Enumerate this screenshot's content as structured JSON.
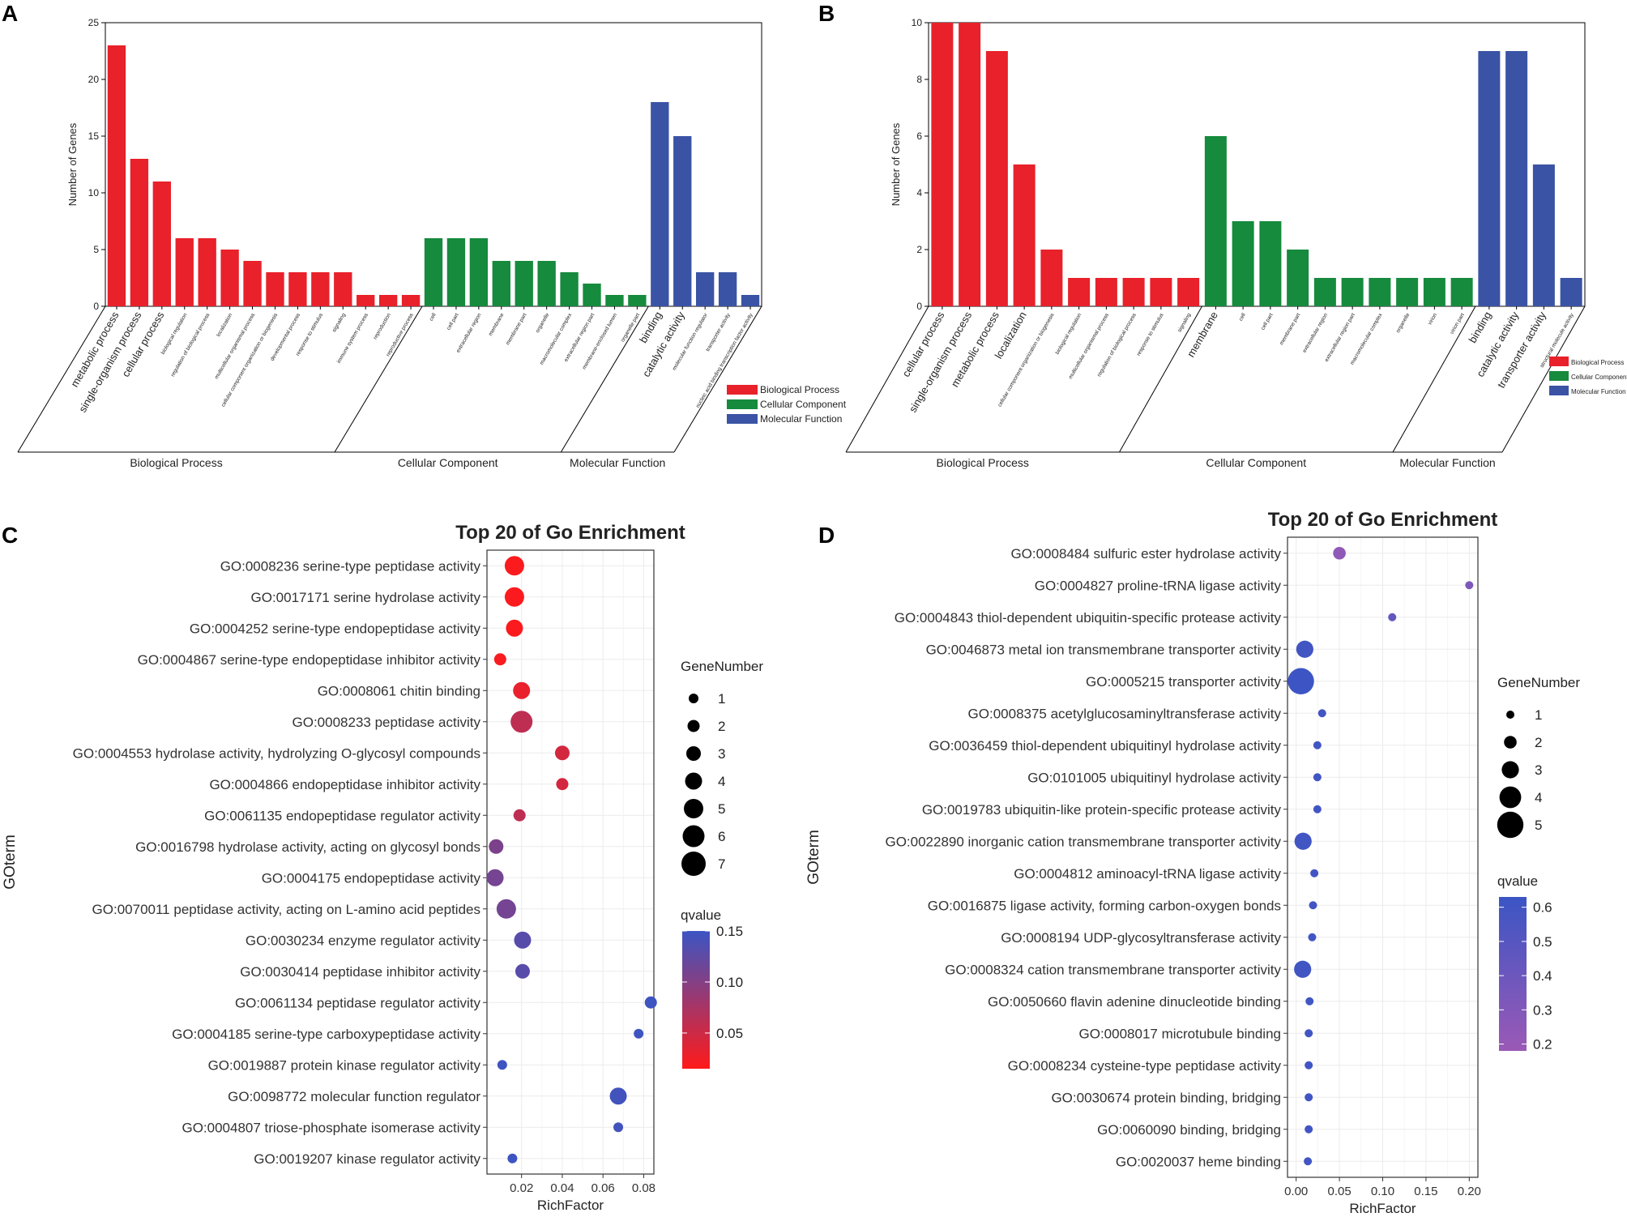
{
  "panels": {
    "A": "A",
    "B": "B",
    "C": "C",
    "D": "D"
  },
  "legend_colors": {
    "Biological Process": "#e8212a",
    "Cellular Component": "#168a3d",
    "Molecular Function": "#3a53a4"
  },
  "chart_data": [
    {
      "type": "bar",
      "panel": "A",
      "ylabel": "Number of Genes",
      "ylim": [
        0,
        25
      ],
      "yticks": [
        0,
        5,
        10,
        15,
        20,
        25
      ],
      "legend": [
        "Biological Process",
        "Cellular Component",
        "Molecular Function"
      ],
      "groups": [
        {
          "name": "Biological Process",
          "categories": [
            "metabolic process",
            "single-organism process",
            "cellular process",
            "biological regulation",
            "regulation of biological process",
            "localization",
            "multicellular organismal process",
            "cellular component organization or biogenesis",
            "developmental process",
            "response to stimulus",
            "signaling",
            "immune system process",
            "reproduction",
            "reproductive process"
          ],
          "values": [
            23,
            13,
            11,
            6,
            6,
            5,
            4,
            3,
            3,
            3,
            3,
            1,
            1,
            1
          ]
        },
        {
          "name": "Cellular Component",
          "categories": [
            "cell",
            "cell part",
            "extracellular region",
            "membrane",
            "membrane part",
            "organelle",
            "macromolecular complex",
            "extracellular region part",
            "membrane-enclosed lumen",
            "organelle part"
          ],
          "values": [
            6,
            6,
            6,
            4,
            4,
            4,
            3,
            2,
            1,
            1
          ]
        },
        {
          "name": "Molecular Function",
          "categories": [
            "binding",
            "catalytic activity",
            "molecular function regulator",
            "transporter activity",
            "nucleic acid binding transcription factor activity"
          ],
          "values": [
            18,
            15,
            3,
            3,
            1
          ]
        }
      ]
    },
    {
      "type": "bar",
      "panel": "B",
      "ylabel": "Number of Genes",
      "ylim": [
        0,
        10
      ],
      "yticks": [
        0,
        2,
        4,
        6,
        8,
        10
      ],
      "legend": [
        "Biological Process",
        "Cellular Component",
        "Molecular Function"
      ],
      "groups": [
        {
          "name": "Biological Process",
          "categories": [
            "cellular process",
            "single-organism process",
            "metabolic process",
            "localization",
            "cellular component organization or biogenesis",
            "biological regulation",
            "multicellular organismal process",
            "regulation of biological process",
            "response to stimulus",
            "signaling"
          ],
          "values": [
            10,
            10,
            9,
            5,
            2,
            1,
            1,
            1,
            1,
            1
          ]
        },
        {
          "name": "Cellular Component",
          "categories": [
            "membrane",
            "cell",
            "cell part",
            "membrane part",
            "extracellular region",
            "extracellular region part",
            "macromolecular complex",
            "organelle",
            "virion",
            "virion part"
          ],
          "values": [
            6,
            3,
            3,
            2,
            1,
            1,
            1,
            1,
            1,
            1
          ]
        },
        {
          "name": "Molecular Function",
          "categories": [
            "binding",
            "catalytic activity",
            "transporter activity",
            "structural molecule activity"
          ],
          "values": [
            9,
            9,
            5,
            1
          ]
        }
      ]
    },
    {
      "type": "scatter",
      "panel": "C",
      "title": "Top 20 of Go Enrichment",
      "xlabel": "RichFactor",
      "ylabel": "GOterm",
      "xlim": [
        0.003,
        0.085
      ],
      "xticks": [
        0.02,
        0.04,
        0.06,
        0.08
      ],
      "xtick_labels": [
        "0.02",
        "0.04",
        "0.06",
        "0.08"
      ],
      "size_legend": {
        "title": "GeneNumber",
        "values": [
          1,
          2,
          3,
          4,
          5,
          6,
          7
        ]
      },
      "color_legend": {
        "title": "qvalue",
        "min": 0.015,
        "max": 0.15,
        "ticks": [
          0.05,
          0.1,
          0.15
        ],
        "tick_labels": [
          "0.05",
          "0.10",
          "0.15"
        ],
        "low_color": "#ff1a1a",
        "high_color": "#3b55c4"
      },
      "terms": [
        "GO:0008236 serine-type peptidase activity",
        "GO:0017171 serine hydrolase activity",
        "GO:0004252 serine-type endopeptidase activity",
        "GO:0004867 serine-type endopeptidase inhibitor activity",
        "GO:0008061 chitin binding",
        "GO:0008233 peptidase activity",
        "GO:0004553 hydrolase activity, hydrolyzing O-glycosyl compounds",
        "GO:0004866 endopeptidase inhibitor activity",
        "GO:0061135 endopeptidase regulator activity",
        "GO:0016798 hydrolase activity, acting on glycosyl bonds",
        "GO:0004175 endopeptidase activity",
        "GO:0070011 peptidase activity, acting on L-amino acid peptides",
        "GO:0030234 enzyme regulator activity",
        "GO:0030414 peptidase inhibitor activity",
        "GO:0061134 peptidase regulator activity",
        "GO:0004185 serine-type carboxypeptidase activity",
        "GO:0019887 protein kinase regulator activity",
        "GO:0098772 molecular function regulator",
        "GO:0004807 triose-phosphate isomerase activity",
        "GO:0019207 kinase regulator activity"
      ],
      "richfactor": [
        0.0165,
        0.0165,
        0.0165,
        0.0095,
        0.02,
        0.02,
        0.04,
        0.04,
        0.019,
        0.0075,
        0.007,
        0.0125,
        0.0205,
        0.0205,
        0.0835,
        0.0775,
        0.0105,
        0.0675,
        0.0675,
        0.0155
      ],
      "genenumber": [
        5,
        5,
        4,
        2,
        4,
        6,
        3,
        2,
        2,
        3,
        4,
        5,
        4,
        3,
        2,
        1,
        1,
        4,
        1,
        1
      ],
      "qvalue": [
        0.018,
        0.018,
        0.018,
        0.02,
        0.03,
        0.06,
        0.045,
        0.045,
        0.06,
        0.105,
        0.11,
        0.11,
        0.13,
        0.13,
        0.148,
        0.148,
        0.148,
        0.145,
        0.145,
        0.148
      ]
    },
    {
      "type": "scatter",
      "panel": "D",
      "title": "Top 20 of Go Enrichment",
      "xlabel": "RichFactor",
      "ylabel": "GOterm",
      "xlim": [
        -0.01,
        0.21
      ],
      "xticks": [
        0,
        0.05,
        0.1,
        0.15,
        0.2
      ],
      "xtick_labels": [
        "0.00",
        "0.05",
        "0.10",
        "0.15",
        "0.20"
      ],
      "size_legend": {
        "title": "GeneNumber",
        "values": [
          1,
          2,
          3,
          4,
          5
        ]
      },
      "color_legend": {
        "title": "qvalue",
        "min": 0.18,
        "max": 0.63,
        "ticks": [
          0.2,
          0.3,
          0.4,
          0.5,
          0.6
        ],
        "tick_labels": [
          "0.2",
          "0.3",
          "0.4",
          "0.5",
          "0.6"
        ],
        "low_color": "#9b59b6",
        "high_color": "#3b55c4"
      },
      "terms": [
        "GO:0008484 sulfuric ester hydrolase activity",
        "GO:0004827 proline-tRNA ligase activity",
        "GO:0004843 thiol-dependent ubiquitin-specific protease activity",
        "GO:0046873 metal ion transmembrane transporter activity",
        "GO:0005215 transporter activity",
        "GO:0008375 acetylglucosaminyltransferase activity",
        "GO:0036459 thiol-dependent ubiquitinyl hydrolase activity",
        "GO:0101005 ubiquitinyl hydrolase activity",
        "GO:0019783 ubiquitin-like protein-specific protease activity",
        "GO:0022890 inorganic cation transmembrane transporter activity",
        "GO:0004812 aminoacyl-tRNA ligase activity",
        "GO:0016875 ligase activity, forming carbon-oxygen bonds",
        "GO:0008194 UDP-glycosyltransferase activity",
        "GO:0008324 cation transmembrane transporter activity",
        "GO:0050660 flavin adenine dinucleotide binding",
        "GO:0008017 microtubule binding",
        "GO:0008234 cysteine-type peptidase activity",
        "GO:0030674 protein binding, bridging",
        "GO:0060090 binding, bridging",
        "GO:0020037 heme binding"
      ],
      "richfactor": [
        0.05,
        0.2,
        0.111,
        0.01,
        0.0055,
        0.03,
        0.0245,
        0.0245,
        0.0245,
        0.008,
        0.021,
        0.0195,
        0.0185,
        0.0075,
        0.0155,
        0.0145,
        0.0145,
        0.0145,
        0.0145,
        0.0135
      ],
      "genenumber": [
        2,
        1,
        1,
        3,
        5,
        1,
        1,
        1,
        1,
        3,
        1,
        1,
        1,
        3,
        1,
        1,
        1,
        1,
        1,
        1
      ],
      "qvalue": [
        0.23,
        0.32,
        0.45,
        0.6,
        0.62,
        0.6,
        0.6,
        0.6,
        0.6,
        0.6,
        0.6,
        0.6,
        0.6,
        0.6,
        0.6,
        0.6,
        0.6,
        0.6,
        0.6,
        0.6
      ]
    }
  ]
}
